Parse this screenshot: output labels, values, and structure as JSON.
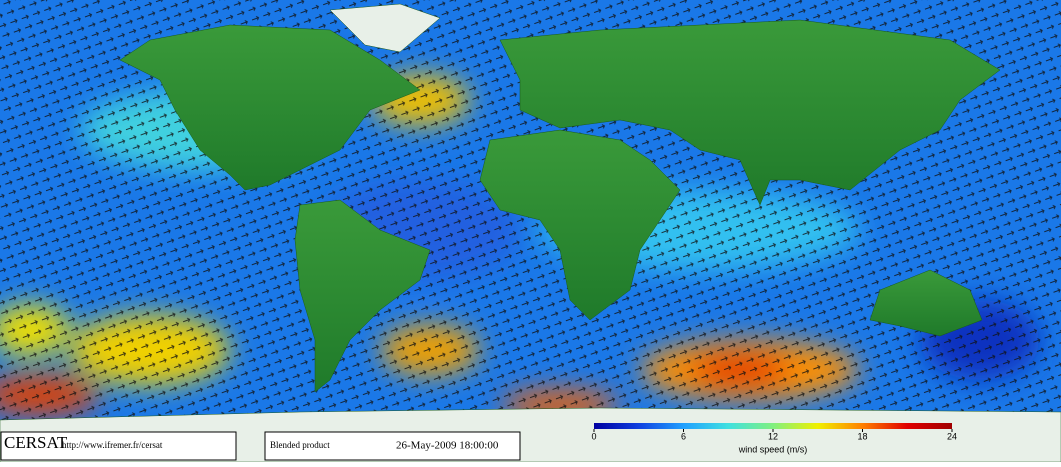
{
  "footer": {
    "logo": "CERSAT",
    "url": "http://www.ifremer.fr/cersat",
    "product": "Blended product",
    "date": "26-May-2009 18:00:00"
  },
  "colorbar": {
    "label": "wind speed (m/s)",
    "lim": [
      0,
      24
    ],
    "ticks": [
      0,
      6,
      12,
      18,
      24
    ],
    "colors": [
      "#0000a0",
      "#1040e0",
      "#20a0ff",
      "#40e0e0",
      "#80f080",
      "#f0f000",
      "#ff8000",
      "#e00000",
      "#a00000"
    ]
  }
}
